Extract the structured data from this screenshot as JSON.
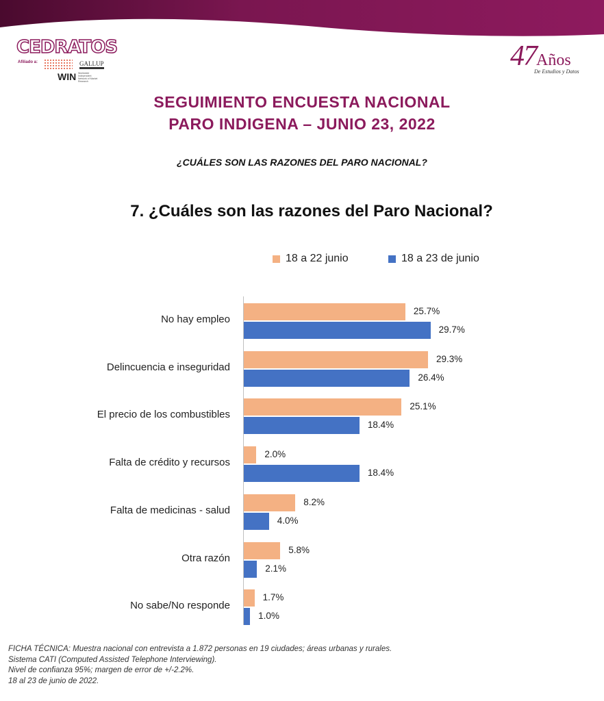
{
  "header": {
    "logo_text": "CEDRATOS",
    "affiliate_label": "Afiliado a:",
    "gallup_text": "GALLUP",
    "win_text": "WIN",
    "win_subtitle": "Worldwide Independent Network of Market Research",
    "anniversary_number": "47",
    "anniversary_word": "Años",
    "anniversary_sub": "De Estudios y Datos"
  },
  "title_line1": "SEGUIMIENTO ENCUESTA NACIONAL",
  "title_line2": "PARO INDIGENA – JUNIO 23, 2022",
  "subtitle": "¿CUÁLES SON LAS RAZONES DEL PARO NACIONAL?",
  "chart_data": {
    "type": "bar",
    "orientation": "horizontal",
    "title": "7. ¿Cuáles son las razones del Paro Nacional?",
    "legend_position": "top",
    "categories": [
      "No hay empleo",
      "Delincuencia e inseguridad",
      "El precio de los combustibles",
      "Falta de crédito y recursos",
      "Falta de medicinas - salud",
      "Otra razón",
      "No sabe/No responde"
    ],
    "series": [
      {
        "name": "18 a 22 junio",
        "color": "#f4b183",
        "values": [
          25.7,
          29.3,
          25.1,
          2.0,
          8.2,
          5.8,
          1.7
        ],
        "labels": [
          "25.7%",
          "29.3%",
          "25.1%",
          "2.0%",
          "8.2%",
          "5.8%",
          "1.7%"
        ]
      },
      {
        "name": "18 a 23 de junio",
        "color": "#4472c4",
        "values": [
          29.7,
          26.4,
          18.4,
          18.4,
          4.0,
          2.1,
          1.0
        ],
        "labels": [
          "29.7%",
          "26.4%",
          "18.4%",
          "18.4%",
          "4.0%",
          "2.1%",
          "1.0%"
        ]
      }
    ],
    "xlim": [
      0,
      32
    ]
  },
  "footer": [
    "FICHA TÉCNICA: Muestra nacional con entrevista a 1.872 personas en 19 ciudades; áreas urbanas y rurales.",
    "Sistema CATI (Computed Assisted Telephone Interviewing).",
    "Nivel de confianza 95%; margen de error de +/-2.2%.",
    "18 al 23 de junio de 2022."
  ]
}
